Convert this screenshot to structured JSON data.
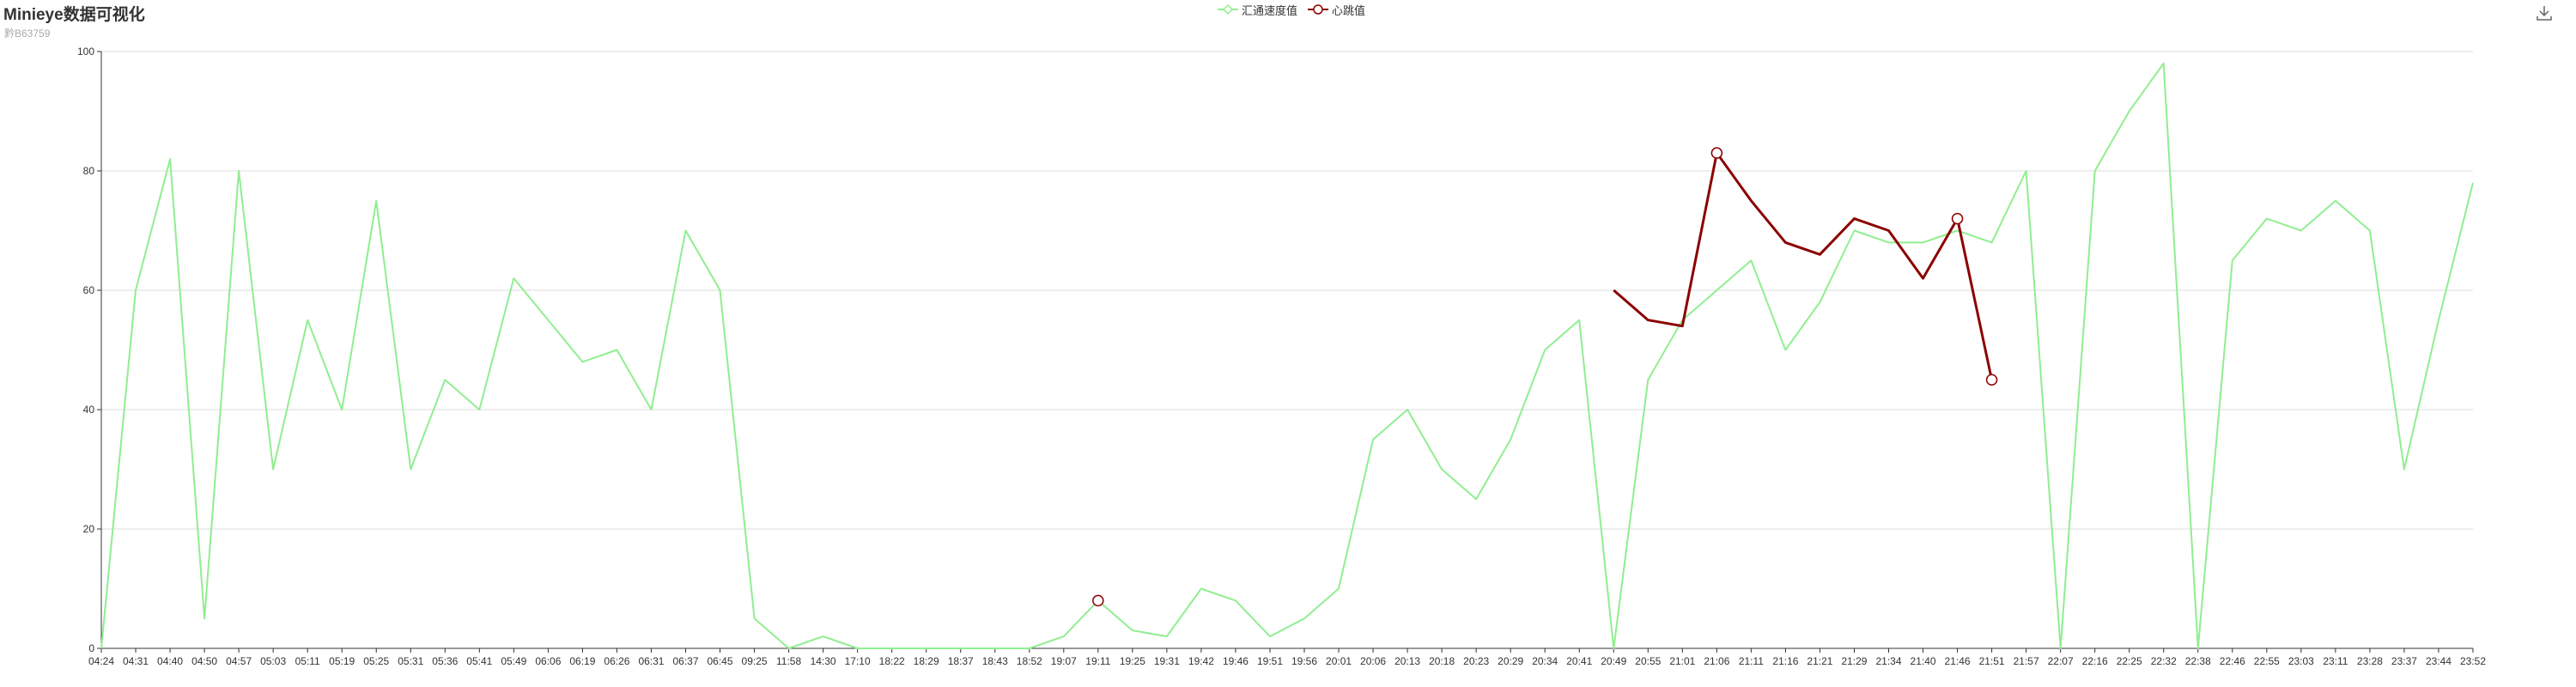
{
  "header": {
    "title": "Minieye数据可视化",
    "subtitle": "黔B63759"
  },
  "toolbox": {
    "icon": "download-icon"
  },
  "colors": {
    "series1": "#90EE90",
    "series2": "#8B0000",
    "axis": "#333333",
    "grid": "#dddddd"
  },
  "chart_data": {
    "type": "line",
    "x": [
      "04:24",
      "04:31",
      "04:40",
      "04:50",
      "04:57",
      "05:03",
      "05:11",
      "05:19",
      "05:25",
      "05:31",
      "05:36",
      "05:41",
      "05:49",
      "06:06",
      "06:19",
      "06:26",
      "06:31",
      "06:37",
      "06:45",
      "09:25",
      "11:58",
      "14:30",
      "17:10",
      "18:22",
      "18:29",
      "18:37",
      "18:43",
      "18:52",
      "19:07",
      "19:11",
      "19:25",
      "19:31",
      "19:42",
      "19:46",
      "19:51",
      "19:56",
      "20:01",
      "20:06",
      "20:13",
      "20:18",
      "20:23",
      "20:29",
      "20:34",
      "20:41",
      "20:49",
      "20:55",
      "21:01",
      "21:06",
      "21:11",
      "21:16",
      "21:21",
      "21:29",
      "21:34",
      "21:40",
      "21:46",
      "21:51",
      "21:57",
      "22:07",
      "22:16",
      "22:25",
      "22:32",
      "22:38",
      "22:46",
      "22:55",
      "23:03",
      "23:11",
      "23:28",
      "23:37",
      "23:44",
      "23:52"
    ],
    "ylim": [
      0,
      100
    ],
    "yticks": [
      0,
      20,
      40,
      60,
      80,
      100
    ],
    "legend": {
      "position": "top-center"
    },
    "grid": true,
    "series": [
      {
        "name": "汇通速度值",
        "values": [
          0,
          60,
          82,
          5,
          80,
          30,
          55,
          40,
          75,
          30,
          45,
          40,
          62,
          55,
          48,
          50,
          40,
          70,
          60,
          5,
          0,
          2,
          0,
          0,
          0,
          0,
          0,
          0,
          2,
          8,
          3,
          2,
          10,
          8,
          2,
          5,
          10,
          35,
          40,
          30,
          25,
          35,
          50,
          55,
          0,
          45,
          55,
          60,
          65,
          50,
          58,
          70,
          68,
          68,
          70,
          68,
          80,
          0,
          80,
          90,
          98,
          0,
          65,
          72,
          70,
          75,
          70,
          30,
          55,
          78
        ]
      },
      {
        "name": "心跳值",
        "values": [
          null,
          null,
          null,
          null,
          null,
          null,
          null,
          null,
          null,
          null,
          null,
          null,
          null,
          null,
          null,
          null,
          null,
          null,
          null,
          null,
          null,
          null,
          null,
          null,
          null,
          null,
          null,
          null,
          null,
          8,
          null,
          null,
          null,
          null,
          null,
          null,
          null,
          null,
          null,
          null,
          null,
          null,
          null,
          null,
          60,
          55,
          54,
          83,
          75,
          68,
          66,
          72,
          70,
          62,
          72,
          45,
          null,
          null,
          null,
          null,
          null,
          null,
          null,
          null,
          null,
          null,
          null,
          null,
          null,
          null
        ],
        "markers": [
          {
            "x": "19:11",
            "y": 8
          },
          {
            "x": "21:06",
            "y": 83
          },
          {
            "x": "21:46",
            "y": 72
          },
          {
            "x": "21:51",
            "y": 45
          }
        ]
      }
    ]
  }
}
